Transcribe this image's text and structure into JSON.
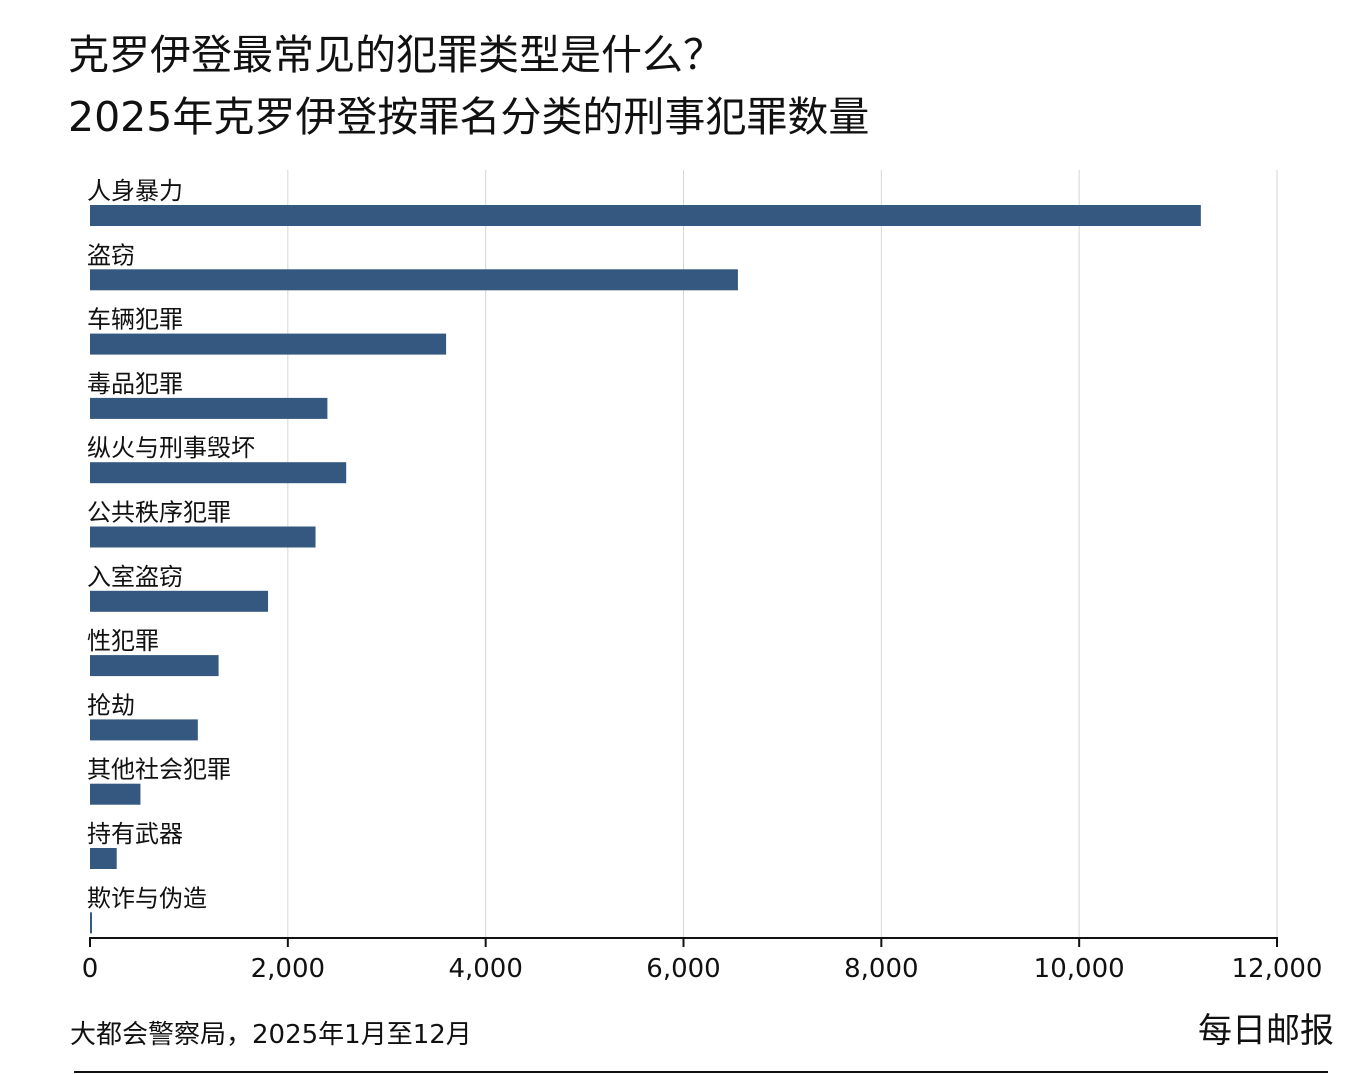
{
  "header": {
    "title": "克罗伊登最常见的犯罪类型是什么？",
    "subtitle": "2025年克罗伊登按罪名分类的刑事犯罪数量"
  },
  "footer": {
    "source": "大都会警察局，2025年1月至12月",
    "brand": "每日邮报"
  },
  "chart_data": {
    "type": "bar",
    "orientation": "horizontal",
    "categories": [
      "人身暴力",
      "盗窃",
      "车辆犯罪",
      "毒品犯罪",
      "纵火与刑事毁坏",
      "公共秩序犯罪",
      "入室盗窃",
      "性犯罪",
      "抢劫",
      "其他社会犯罪",
      "持有武器",
      "欺诈与伪造"
    ],
    "values": [
      11230,
      6550,
      3600,
      2400,
      2590,
      2280,
      1800,
      1300,
      1090,
      510,
      270,
      20
    ],
    "xlim": [
      0,
      12000
    ],
    "xticks": [
      0,
      2000,
      4000,
      6000,
      8000,
      10000,
      12000
    ],
    "xtick_labels": [
      "0",
      "2,000",
      "4,000",
      "6,000",
      "8,000",
      "10,000",
      "12,000"
    ],
    "grid": "vertical",
    "legend": "none",
    "colors": {
      "bar": "#34587f",
      "grid": "#d6d6d6",
      "axis": "#111111"
    }
  }
}
